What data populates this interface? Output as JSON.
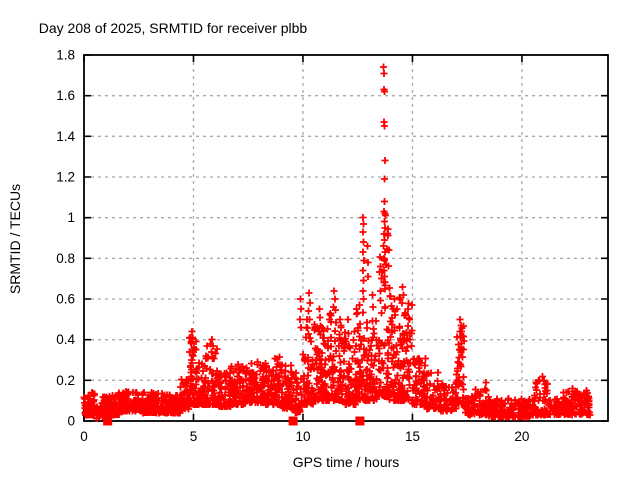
{
  "window": {
    "background": "#ffffff",
    "foreground": "#000000"
  },
  "chart_data": {
    "type": "scatter",
    "title": "Day 208 of 2025, SRMTID for receiver plbb",
    "xlabel": "GPS time / hours",
    "ylabel": "SRMTID / TECUs",
    "xlim": [
      0,
      23.93
    ],
    "ylim": [
      0,
      1.8
    ],
    "xticks": [
      0,
      5,
      10,
      15,
      20
    ],
    "ytick_values": [
      0,
      0.2,
      0.4,
      0.6,
      0.8,
      1,
      1.2,
      1.4,
      1.6,
      1.8
    ],
    "ytick_labels": [
      "0",
      "0.2",
      "0.4",
      "0.6",
      "0.8",
      "1",
      "1.2",
      "1.4",
      "1.6",
      "1.8"
    ],
    "grid": {
      "on": true,
      "style": "dashed",
      "color": "#a9a9a9"
    },
    "legend": "none",
    "marker": {
      "shape": "plus",
      "color": "#ff0000",
      "size": 7
    },
    "axis_color": "#000000",
    "seed": 11,
    "bands_format": "[x_start_hours, x_end_hours, point_count, y_min_TECUs, y_max_TECUs, bottom_bias_exponent] — dense '+' cloud envelope read from plot",
    "bands": [
      [
        0.0,
        0.55,
        70,
        0.03,
        0.14,
        2.0
      ],
      [
        0.55,
        0.85,
        16,
        0.01,
        0.09,
        1.5
      ],
      [
        0.85,
        1.6,
        80,
        0.03,
        0.13,
        2.0
      ],
      [
        1.6,
        2.6,
        110,
        0.05,
        0.15,
        2.0
      ],
      [
        2.6,
        3.6,
        100,
        0.04,
        0.14,
        2.0
      ],
      [
        3.6,
        4.4,
        85,
        0.04,
        0.13,
        2.0
      ],
      [
        4.4,
        4.8,
        45,
        0.06,
        0.22,
        1.8
      ],
      [
        4.8,
        5.15,
        50,
        0.08,
        0.42,
        2.2
      ],
      [
        5.15,
        5.55,
        50,
        0.08,
        0.3,
        2.0
      ],
      [
        5.55,
        6.1,
        60,
        0.08,
        0.38,
        2.2
      ],
      [
        6.1,
        6.7,
        60,
        0.07,
        0.24,
        1.8
      ],
      [
        6.7,
        7.5,
        90,
        0.08,
        0.28,
        1.8
      ],
      [
        7.5,
        8.3,
        95,
        0.09,
        0.3,
        1.8
      ],
      [
        8.3,
        9.0,
        85,
        0.08,
        0.32,
        1.8
      ],
      [
        9.0,
        9.5,
        55,
        0.06,
        0.28,
        1.8
      ],
      [
        9.5,
        10.0,
        45,
        0.04,
        0.25,
        2.0
      ],
      [
        10.0,
        10.6,
        70,
        0.08,
        0.5,
        2.0
      ],
      [
        10.6,
        11.2,
        75,
        0.1,
        0.48,
        1.9
      ],
      [
        11.2,
        11.8,
        75,
        0.1,
        0.55,
        1.9
      ],
      [
        11.8,
        12.4,
        70,
        0.08,
        0.45,
        1.9
      ],
      [
        12.4,
        12.9,
        60,
        0.1,
        0.6,
        1.9
      ],
      [
        12.9,
        13.4,
        60,
        0.1,
        0.5,
        1.9
      ],
      [
        13.4,
        13.95,
        75,
        0.12,
        0.95,
        2.3
      ],
      [
        13.95,
        14.5,
        70,
        0.1,
        0.62,
        1.9
      ],
      [
        14.5,
        15.0,
        65,
        0.1,
        0.58,
        1.9
      ],
      [
        15.0,
        15.6,
        60,
        0.08,
        0.33,
        1.9
      ],
      [
        15.6,
        16.3,
        60,
        0.06,
        0.24,
        1.9
      ],
      [
        16.3,
        17.0,
        50,
        0.05,
        0.19,
        1.8
      ],
      [
        17.0,
        17.35,
        45,
        0.08,
        0.48,
        1.5
      ],
      [
        17.35,
        17.8,
        32,
        0.03,
        0.13,
        1.8
      ],
      [
        17.8,
        18.5,
        55,
        0.03,
        0.16,
        1.9
      ],
      [
        18.5,
        19.5,
        80,
        0.02,
        0.11,
        1.8
      ],
      [
        19.5,
        20.5,
        80,
        0.02,
        0.11,
        1.8
      ],
      [
        20.5,
        21.2,
        60,
        0.03,
        0.2,
        2.2
      ],
      [
        21.2,
        22.0,
        65,
        0.03,
        0.12,
        1.8
      ],
      [
        22.0,
        22.6,
        50,
        0.03,
        0.15,
        2.0
      ],
      [
        22.6,
        23.1,
        50,
        0.03,
        0.14,
        2.0
      ]
    ],
    "spikes_format": "[x_hours, y_TECUs] — individually visible high outlier '+' points",
    "spikes": [
      [
        13.68,
        1.74
      ],
      [
        13.71,
        1.71
      ],
      [
        13.7,
        1.63
      ],
      [
        13.73,
        1.62
      ],
      [
        13.7,
        1.47
      ],
      [
        13.72,
        1.45
      ],
      [
        13.74,
        1.28
      ],
      [
        13.73,
        1.19
      ],
      [
        13.72,
        1.08
      ],
      [
        13.7,
        1.03
      ],
      [
        13.74,
        1.02
      ],
      [
        13.76,
        1.01
      ],
      [
        13.72,
        0.98
      ],
      [
        13.75,
        0.95
      ],
      [
        13.7,
        0.92
      ],
      [
        13.73,
        0.89
      ],
      [
        13.68,
        0.86
      ],
      [
        13.74,
        0.83
      ],
      [
        13.71,
        0.8
      ],
      [
        13.76,
        0.77
      ],
      [
        13.69,
        0.74
      ],
      [
        13.73,
        0.71
      ],
      [
        13.7,
        0.68
      ],
      [
        13.75,
        0.65
      ],
      [
        12.74,
        1.0
      ],
      [
        12.77,
        0.97
      ],
      [
        12.73,
        0.93
      ],
      [
        12.76,
        0.88
      ],
      [
        12.74,
        0.83
      ],
      [
        12.78,
        0.79
      ],
      [
        12.73,
        0.74
      ],
      [
        12.76,
        0.69
      ],
      [
        12.74,
        0.64
      ],
      [
        12.77,
        0.6
      ],
      [
        12.95,
        0.86
      ],
      [
        12.98,
        0.78
      ],
      [
        12.96,
        0.71
      ],
      [
        13.17,
        0.62
      ],
      [
        13.2,
        0.56
      ],
      [
        13.55,
        0.76
      ],
      [
        13.58,
        0.7
      ],
      [
        13.53,
        0.64
      ],
      [
        4.93,
        0.44
      ],
      [
        4.96,
        0.41
      ],
      [
        4.9,
        0.38
      ],
      [
        4.95,
        0.35
      ],
      [
        4.98,
        0.32
      ],
      [
        4.91,
        0.3
      ],
      [
        5.85,
        0.4
      ],
      [
        5.88,
        0.37
      ],
      [
        5.82,
        0.34
      ],
      [
        5.86,
        0.31
      ],
      [
        9.88,
        0.6
      ],
      [
        9.91,
        0.55
      ],
      [
        9.86,
        0.5
      ],
      [
        9.9,
        0.46
      ],
      [
        10.28,
        0.63
      ],
      [
        10.32,
        0.58
      ],
      [
        10.26,
        0.54
      ],
      [
        10.3,
        0.5
      ],
      [
        10.75,
        0.55
      ],
      [
        10.78,
        0.51
      ],
      [
        11.42,
        0.64
      ],
      [
        11.46,
        0.6
      ],
      [
        11.4,
        0.56
      ],
      [
        12.05,
        0.5
      ],
      [
        12.45,
        0.55
      ],
      [
        14.12,
        0.55
      ],
      [
        14.55,
        0.66
      ],
      [
        14.58,
        0.62
      ],
      [
        14.52,
        0.58
      ],
      [
        14.8,
        0.55
      ],
      [
        17.18,
        0.5
      ],
      [
        17.21,
        0.47
      ],
      [
        17.16,
        0.44
      ],
      [
        17.2,
        0.41
      ],
      [
        17.23,
        0.38
      ],
      [
        17.17,
        0.35
      ],
      [
        18.35,
        0.19
      ],
      [
        20.95,
        0.22
      ],
      [
        21.0,
        0.2
      ],
      [
        21.05,
        0.18
      ],
      [
        22.3,
        0.16
      ],
      [
        22.95,
        0.15
      ],
      [
        21.9,
        0.14
      ]
    ],
    "axis_squares": {
      "description": "filled red squares sitting on the x-axis (y = 0)",
      "x": [
        1.08,
        9.55,
        12.6
      ],
      "y": 0,
      "color": "#ff0000",
      "size": 9
    }
  }
}
